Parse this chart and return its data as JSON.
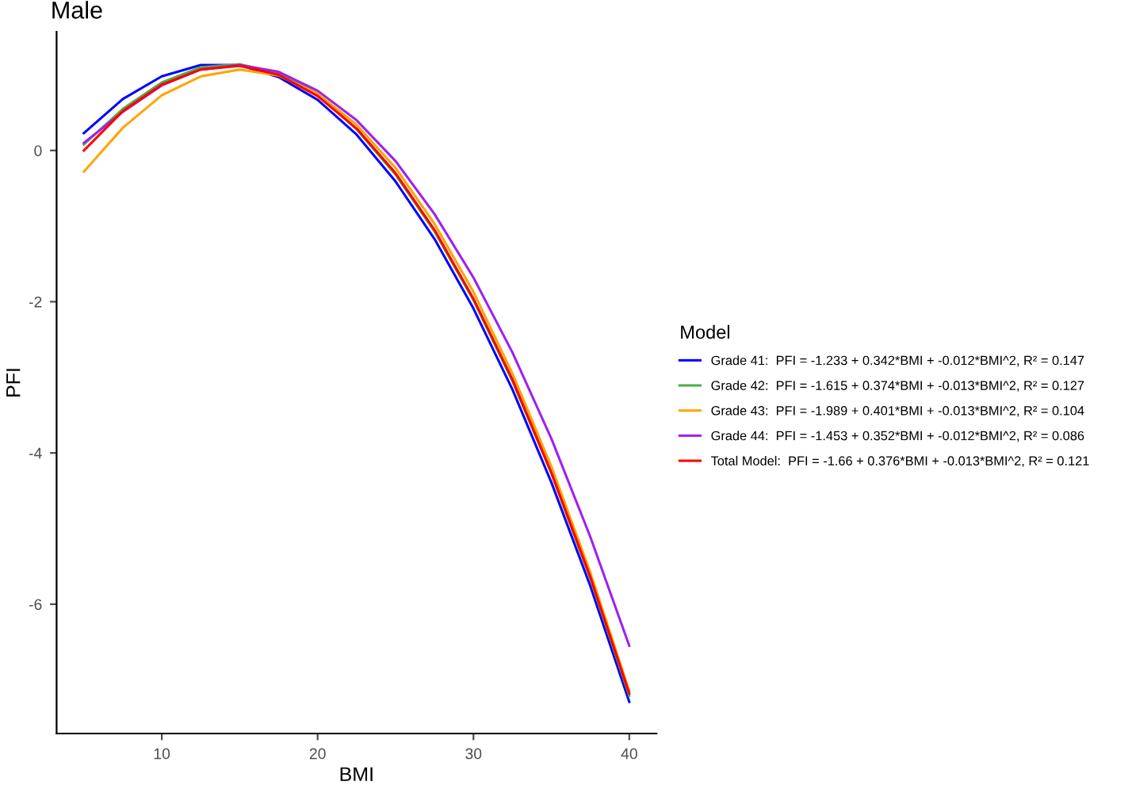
{
  "chart_data": {
    "type": "line",
    "title": "Male",
    "xlabel": "BMI",
    "ylabel": "PFI",
    "legend_title": "Model",
    "x": [
      5,
      7.5,
      10,
      12.5,
      15,
      17.5,
      20,
      22.5,
      25,
      27.5,
      30,
      32.5,
      35,
      37.5,
      40
    ],
    "series": [
      {
        "name": "Grade 41:  PFI = -1.233 + 0.342*BMI + -0.012*BMI^2, R² = 0.147",
        "color": "#0000ff",
        "values": [
          0.23,
          0.68,
          0.98,
          1.13,
          1.13,
          0.97,
          0.67,
          0.21,
          -0.41,
          -1.17,
          -2.09,
          -3.16,
          -4.39,
          -5.76,
          -7.29
        ]
      },
      {
        "name": "Grade 42:  PFI = -1.615 + 0.374*BMI + -0.013*BMI^2, R² = 0.127",
        "color": "#4daf4a",
        "values": [
          0.08,
          0.55,
          0.9,
          1.1,
          1.14,
          1.02,
          0.75,
          0.28,
          -0.32,
          -1.07,
          -1.98,
          -3.05,
          -4.27,
          -5.66,
          -7.21
        ]
      },
      {
        "name": "Grade 43:  PFI = -1.989 + 0.401*BMI + -0.013*BMI^2, R² = 0.104",
        "color": "#ffa500",
        "values": [
          -0.28,
          0.3,
          0.73,
          0.98,
          1.07,
          0.99,
          0.75,
          0.34,
          -0.23,
          -0.97,
          -1.87,
          -2.95,
          -4.18,
          -5.58,
          -7.15
        ]
      },
      {
        "name": "Grade 44:  PFI = -1.453 + 0.352*BMI + -0.012*BMI^2, R² = 0.086",
        "color": "#a020f0",
        "values": [
          0.1,
          0.51,
          0.86,
          1.07,
          1.13,
          1.04,
          0.79,
          0.4,
          -0.14,
          -0.84,
          -1.68,
          -2.67,
          -3.81,
          -5.11,
          -6.55
        ]
      },
      {
        "name": "Total Model:  PFI = -1.66 + 0.376*BMI + -0.013*BMI^2, R² = 0.121",
        "color": "#ff0000",
        "values": [
          0.0,
          0.52,
          0.87,
          1.07,
          1.12,
          1.0,
          0.72,
          0.29,
          -0.3,
          -1.05,
          -1.96,
          -3.03,
          -4.26,
          -5.64,
          -7.18
        ]
      }
    ],
    "xlim": [
      3.25,
      41.75
    ],
    "xticks": [
      10,
      20,
      30,
      40
    ],
    "ylim": [
      -7.71,
      1.57
    ],
    "yticks": [
      -6,
      -4,
      -2,
      0
    ],
    "grid": false,
    "legend": "right",
    "marker": "none",
    "line_style": "solid"
  }
}
